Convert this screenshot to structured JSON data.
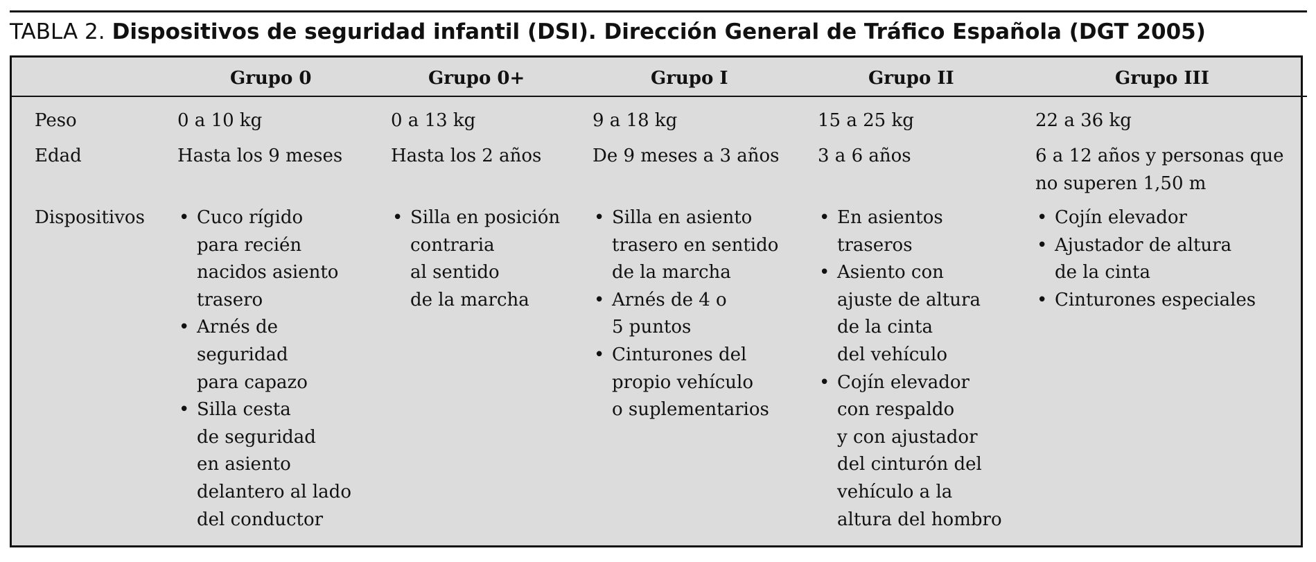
{
  "title": {
    "prefix": "TABLA 2.",
    "main": "Dispositivos de seguridad infantil (DSI). Dirección General de Tráfico Española (DGT 2005)"
  },
  "headers": [
    "",
    "Grupo 0",
    "Grupo 0+",
    "Grupo I",
    "Grupo II",
    "Grupo III"
  ],
  "rows": {
    "peso": {
      "label": "Peso",
      "values": [
        "0 a 10 kg",
        "0 a 13 kg",
        "9 a 18 kg",
        "15 a 25 kg",
        "22 a 36 kg"
      ]
    },
    "edad": {
      "label": "Edad",
      "values": [
        "Hasta los 9 meses",
        "Hasta los 2 años",
        "De 9 meses a 3 años",
        "3 a 6 años",
        "6 a 12 años y personas que\n   no superen 1,50 m"
      ]
    },
    "dispositivos": {
      "label": "Dispositivos",
      "values": [
        [
          "Cuco rígido\npara recién\nnacidos asiento\ntrasero",
          "Arnés de\nseguridad\npara capazo",
          "Silla cesta\nde seguridad\nen asiento\ndelantero al lado\ndel conductor"
        ],
        [
          "Silla en posición\ncontraria\nal sentido\nde la marcha"
        ],
        [
          "Silla en asiento\ntrasero en sentido\nde la marcha",
          "Arnés de 4 o\n5 puntos",
          "Cinturones del\npropio vehículo\no suplementarios"
        ],
        [
          "En asientos\ntraseros",
          "Asiento con\najuste de altura\nde la cinta\ndel vehículo",
          "Cojín elevador\ncon respaldo\ny con ajustador\ndel cinturón del\nvehículo a la\naltura del hombro"
        ],
        [
          "Cojín elevador",
          "Ajustador de altura\nde la cinta",
          "Cinturones especiales"
        ]
      ]
    }
  },
  "bullet_char": "•"
}
